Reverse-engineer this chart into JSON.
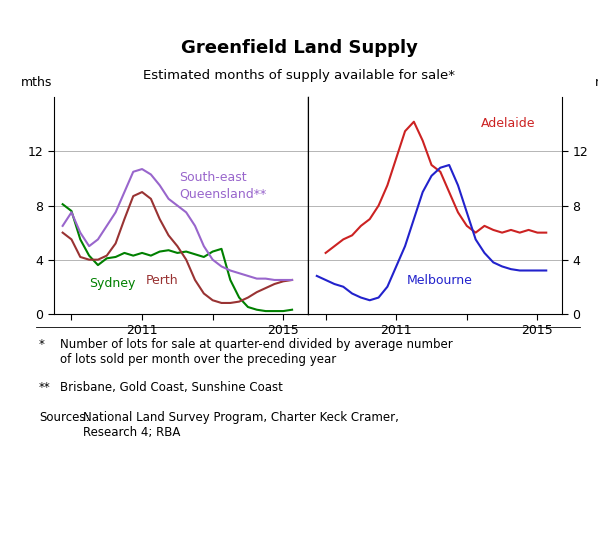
{
  "title": "Greenfield Land Supply",
  "subtitle": "Estimated months of supply available for sale*",
  "ylabel_left": "mths",
  "ylabel_right": "mths",
  "ylim": [
    0,
    16
  ],
  "yticks": [
    0,
    4,
    8,
    12
  ],
  "xlim_left": [
    2008.5,
    2015.7
  ],
  "xlim_right": [
    2008.5,
    2015.7
  ],
  "footnote1_star": "*",
  "footnote1_text": "Number of lots for sale at quarter-end divided by average number\nof lots sold per month over the preceding year",
  "footnote2_star": "**",
  "footnote2_text": "Brisbane, Gold Coast, Sunshine Coast",
  "sources_label": "Sources:",
  "sources_text": "National Land Survey Program, Charter Keck Cramer,\nResearch 4; RBA",
  "sydney_color": "#008000",
  "perth_color": "#993333",
  "queensland_color": "#9966CC",
  "adelaide_color": "#CC2222",
  "melbourne_color": "#2222CC",
  "sydney_x": [
    2008.75,
    2009.0,
    2009.25,
    2009.5,
    2009.75,
    2010.0,
    2010.25,
    2010.5,
    2010.75,
    2011.0,
    2011.25,
    2011.5,
    2011.75,
    2012.0,
    2012.25,
    2012.5,
    2012.75,
    2013.0,
    2013.25,
    2013.5,
    2013.75,
    2014.0,
    2014.25,
    2014.5,
    2014.75,
    2015.0,
    2015.25
  ],
  "sydney_y": [
    8.1,
    7.6,
    5.5,
    4.3,
    3.6,
    4.1,
    4.2,
    4.5,
    4.3,
    4.5,
    4.3,
    4.6,
    4.7,
    4.5,
    4.6,
    4.4,
    4.2,
    4.6,
    4.8,
    2.5,
    1.2,
    0.5,
    0.3,
    0.2,
    0.2,
    0.2,
    0.3
  ],
  "perth_x": [
    2008.75,
    2009.0,
    2009.25,
    2009.5,
    2009.75,
    2010.0,
    2010.25,
    2010.5,
    2010.75,
    2011.0,
    2011.25,
    2011.5,
    2011.75,
    2012.0,
    2012.25,
    2012.5,
    2012.75,
    2013.0,
    2013.25,
    2013.5,
    2013.75,
    2014.0,
    2014.25,
    2014.5,
    2014.75,
    2015.0,
    2015.25
  ],
  "perth_y": [
    6.0,
    5.5,
    4.2,
    4.0,
    4.0,
    4.3,
    5.2,
    7.0,
    8.7,
    9.0,
    8.5,
    7.0,
    5.8,
    5.0,
    4.0,
    2.5,
    1.5,
    1.0,
    0.8,
    0.8,
    0.9,
    1.2,
    1.6,
    1.9,
    2.2,
    2.4,
    2.5
  ],
  "queensland_x": [
    2008.75,
    2009.0,
    2009.25,
    2009.5,
    2009.75,
    2010.0,
    2010.25,
    2010.5,
    2010.75,
    2011.0,
    2011.25,
    2011.5,
    2011.75,
    2012.0,
    2012.25,
    2012.5,
    2012.75,
    2013.0,
    2013.25,
    2013.5,
    2013.75,
    2014.0,
    2014.25,
    2014.5,
    2014.75,
    2015.0,
    2015.25
  ],
  "queensland_y": [
    6.5,
    7.5,
    6.0,
    5.0,
    5.5,
    6.5,
    7.5,
    9.0,
    10.5,
    10.7,
    10.3,
    9.5,
    8.5,
    8.0,
    7.5,
    6.5,
    5.0,
    4.0,
    3.5,
    3.2,
    3.0,
    2.8,
    2.6,
    2.6,
    2.5,
    2.5,
    2.5
  ],
  "adelaide_x": [
    2009.0,
    2009.25,
    2009.5,
    2009.75,
    2010.0,
    2010.25,
    2010.5,
    2010.75,
    2011.0,
    2011.25,
    2011.5,
    2011.75,
    2012.0,
    2012.25,
    2012.5,
    2012.75,
    2013.0,
    2013.25,
    2013.5,
    2013.75,
    2014.0,
    2014.25,
    2014.5,
    2014.75,
    2015.0,
    2015.25
  ],
  "adelaide_y": [
    4.5,
    5.0,
    5.5,
    5.8,
    6.5,
    7.0,
    8.0,
    9.5,
    11.5,
    13.5,
    14.2,
    12.8,
    11.0,
    10.5,
    9.0,
    7.5,
    6.5,
    6.0,
    6.5,
    6.2,
    6.0,
    6.2,
    6.0,
    6.2,
    6.0,
    6.0
  ],
  "melbourne_x": [
    2008.75,
    2009.0,
    2009.25,
    2009.5,
    2009.75,
    2010.0,
    2010.25,
    2010.5,
    2010.75,
    2011.0,
    2011.25,
    2011.5,
    2011.75,
    2012.0,
    2012.25,
    2012.5,
    2012.75,
    2013.0,
    2013.25,
    2013.5,
    2013.75,
    2014.0,
    2014.25,
    2014.5,
    2014.75,
    2015.0,
    2015.25
  ],
  "melbourne_y": [
    2.8,
    2.5,
    2.2,
    2.0,
    1.5,
    1.2,
    1.0,
    1.2,
    2.0,
    3.5,
    5.0,
    7.0,
    9.0,
    10.2,
    10.8,
    11.0,
    9.5,
    7.5,
    5.5,
    4.5,
    3.8,
    3.5,
    3.3,
    3.2,
    3.2,
    3.2,
    3.2
  ],
  "background_color": "#ffffff",
  "grid_color": "#aaaaaa"
}
